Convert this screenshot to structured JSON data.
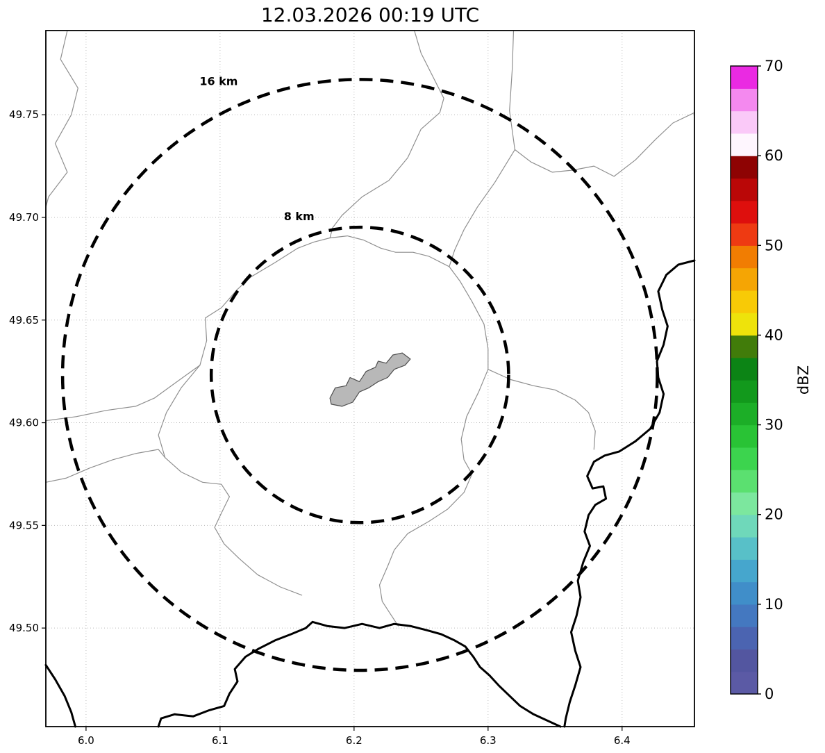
{
  "title": "12.03.2026 00:19 UTC",
  "map": {
    "extent": {
      "lon_min": 5.97,
      "lon_max": 6.454,
      "lat_min": 49.452,
      "lat_max": 49.791
    },
    "x_axis": {
      "tick_labels": [
        "6.0",
        "6.1",
        "6.2",
        "6.3",
        "6.4"
      ],
      "tick_values": [
        6.0,
        6.1,
        6.2,
        6.3,
        6.4
      ]
    },
    "y_axis": {
      "tick_labels": [
        "49.50",
        "49.55",
        "49.60",
        "49.65",
        "49.70",
        "49.75"
      ],
      "tick_values": [
        49.5,
        49.55,
        49.6,
        49.65,
        49.7,
        49.75
      ]
    },
    "radar_center": {
      "lon": 6.2044,
      "lat": 49.6233
    },
    "range_rings": [
      {
        "label": "16 km",
        "radius_km": 16,
        "label_pos": {
          "lon": 6.099,
          "lat": 49.7645
        }
      },
      {
        "label": "8 km",
        "radius_km": 8,
        "label_pos": {
          "lon": 6.159,
          "lat": 49.6987
        }
      }
    ],
    "airport_outline": [
      [
        6.182,
        49.612
      ],
      [
        6.186,
        49.617
      ],
      [
        6.194,
        49.618
      ],
      [
        6.197,
        49.622
      ],
      [
        6.204,
        49.62
      ],
      [
        6.209,
        49.625
      ],
      [
        6.216,
        49.627
      ],
      [
        6.218,
        49.63
      ],
      [
        6.224,
        49.629
      ],
      [
        6.229,
        49.633
      ],
      [
        6.236,
        49.634
      ],
      [
        6.242,
        49.631
      ],
      [
        6.238,
        49.628
      ],
      [
        6.23,
        49.626
      ],
      [
        6.225,
        49.622
      ],
      [
        6.218,
        49.62
      ],
      [
        6.211,
        49.617
      ],
      [
        6.204,
        49.615
      ],
      [
        6.199,
        49.61
      ],
      [
        6.191,
        49.608
      ],
      [
        6.183,
        49.609
      ]
    ],
    "country_borders": [
      [
        [
          6.454,
          49.679
        ],
        [
          6.442,
          49.677
        ],
        [
          6.433,
          49.672
        ],
        [
          6.427,
          49.664
        ],
        [
          6.43,
          49.655
        ],
        [
          6.434,
          49.647
        ],
        [
          6.431,
          49.638
        ],
        [
          6.426,
          49.63
        ],
        [
          6.427,
          49.622
        ],
        [
          6.431,
          49.614
        ],
        [
          6.428,
          49.605
        ],
        [
          6.421,
          49.597
        ],
        [
          6.41,
          49.591
        ],
        [
          6.398,
          49.586
        ],
        [
          6.387,
          49.584
        ],
        [
          6.379,
          49.581
        ],
        [
          6.374,
          49.574
        ],
        [
          6.378,
          49.568
        ],
        [
          6.386,
          49.569
        ],
        [
          6.388,
          49.563
        ],
        [
          6.38,
          49.56
        ],
        [
          6.375,
          49.555
        ],
        [
          6.372,
          49.547
        ],
        [
          6.376,
          49.54
        ],
        [
          6.371,
          49.532
        ],
        [
          6.367,
          49.523
        ],
        [
          6.369,
          49.515
        ],
        [
          6.366,
          49.506
        ],
        [
          6.362,
          49.498
        ],
        [
          6.365,
          49.489
        ],
        [
          6.369,
          49.481
        ],
        [
          6.365,
          49.472
        ],
        [
          6.361,
          49.464
        ],
        [
          6.358,
          49.456
        ],
        [
          6.357,
          49.452
        ]
      ],
      [
        [
          6.054,
          49.452
        ],
        [
          6.056,
          49.456
        ],
        [
          6.066,
          49.458
        ],
        [
          6.08,
          49.457
        ],
        [
          6.092,
          49.46
        ],
        [
          6.103,
          49.462
        ],
        [
          6.107,
          49.468
        ],
        [
          6.113,
          49.474
        ],
        [
          6.111,
          49.48
        ],
        [
          6.119,
          49.486
        ],
        [
          6.129,
          49.49
        ],
        [
          6.141,
          49.494
        ],
        [
          6.153,
          49.497
        ],
        [
          6.164,
          49.5
        ],
        [
          6.169,
          49.503
        ],
        [
          6.18,
          49.501
        ],
        [
          6.193,
          49.5
        ],
        [
          6.206,
          49.502
        ],
        [
          6.219,
          49.5
        ],
        [
          6.23,
          49.502
        ],
        [
          6.242,
          49.501
        ],
        [
          6.254,
          49.499
        ],
        [
          6.265,
          49.497
        ],
        [
          6.275,
          49.494
        ],
        [
          6.283,
          49.491
        ],
        [
          6.289,
          49.486
        ],
        [
          6.294,
          49.481
        ],
        [
          6.301,
          49.477
        ],
        [
          6.308,
          49.472
        ],
        [
          6.316,
          49.467
        ],
        [
          6.324,
          49.462
        ],
        [
          6.334,
          49.458
        ],
        [
          6.344,
          49.455
        ],
        [
          6.354,
          49.452
        ]
      ],
      [
        [
          5.97,
          49.482
        ],
        [
          5.977,
          49.475
        ],
        [
          5.984,
          49.467
        ],
        [
          5.989,
          49.459
        ],
        [
          5.992,
          49.452
        ]
      ]
    ],
    "admin_boundaries": [
      [
        [
          5.986,
          49.791
        ],
        [
          5.981,
          49.777
        ],
        [
          5.994,
          49.763
        ],
        [
          5.989,
          49.75
        ],
        [
          5.977,
          49.736
        ],
        [
          5.986,
          49.722
        ],
        [
          5.972,
          49.71
        ],
        [
          5.97,
          49.705
        ]
      ],
      [
        [
          6.245,
          49.791
        ],
        [
          6.25,
          49.78
        ],
        [
          6.267,
          49.758
        ],
        [
          6.264,
          49.751
        ],
        [
          6.25,
          49.743
        ],
        [
          6.24,
          49.729
        ],
        [
          6.226,
          49.718
        ],
        [
          6.206,
          49.71
        ],
        [
          6.191,
          49.701
        ],
        [
          6.184,
          49.695
        ],
        [
          6.182,
          49.69
        ]
      ],
      [
        [
          5.97,
          49.601
        ],
        [
          5.993,
          49.603
        ],
        [
          6.015,
          49.606
        ],
        [
          6.037,
          49.608
        ],
        [
          6.051,
          49.612
        ],
        [
          6.07,
          49.621
        ],
        [
          6.085,
          49.628
        ],
        [
          6.09,
          49.64
        ],
        [
          6.089,
          49.651
        ],
        [
          6.101,
          49.656
        ],
        [
          6.113,
          49.665
        ],
        [
          6.123,
          49.671
        ],
        [
          6.141,
          49.678
        ],
        [
          6.158,
          49.685
        ],
        [
          6.17,
          49.688
        ],
        [
          6.182,
          49.69
        ],
        [
          6.195,
          49.691
        ],
        [
          6.207,
          49.689
        ],
        [
          6.22,
          49.685
        ],
        [
          6.231,
          49.683
        ],
        [
          6.244,
          49.683
        ],
        [
          6.256,
          49.681
        ],
        [
          6.271,
          49.676
        ],
        [
          6.279,
          49.669
        ],
        [
          6.288,
          49.659
        ],
        [
          6.297,
          49.648
        ],
        [
          6.3,
          49.636
        ],
        [
          6.3,
          49.626
        ],
        [
          6.293,
          49.615
        ],
        [
          6.284,
          49.603
        ],
        [
          6.28,
          49.592
        ],
        [
          6.282,
          49.582
        ],
        [
          6.288,
          49.575
        ],
        [
          6.282,
          49.566
        ],
        [
          6.27,
          49.558
        ],
        [
          6.256,
          49.552
        ],
        [
          6.24,
          49.546
        ],
        [
          6.23,
          49.538
        ],
        [
          6.225,
          49.53
        ],
        [
          6.219,
          49.521
        ],
        [
          6.221,
          49.513
        ],
        [
          6.227,
          49.507
        ],
        [
          6.233,
          49.501
        ]
      ],
      [
        [
          6.085,
          49.628
        ],
        [
          6.071,
          49.617
        ],
        [
          6.06,
          49.605
        ],
        [
          6.054,
          49.594
        ],
        [
          6.059,
          49.583
        ],
        [
          6.071,
          49.576
        ],
        [
          6.087,
          49.571
        ],
        [
          6.101,
          49.57
        ],
        [
          6.107,
          49.564
        ],
        [
          6.101,
          49.556
        ],
        [
          6.096,
          49.549
        ],
        [
          6.103,
          49.541
        ],
        [
          6.114,
          49.534
        ],
        [
          6.128,
          49.526
        ],
        [
          6.145,
          49.52
        ],
        [
          6.161,
          49.516
        ]
      ],
      [
        [
          5.97,
          49.571
        ],
        [
          5.985,
          49.573
        ],
        [
          6.003,
          49.578
        ],
        [
          6.02,
          49.582
        ],
        [
          6.037,
          49.585
        ],
        [
          6.054,
          49.587
        ],
        [
          6.059,
          49.583
        ]
      ],
      [
        [
          6.319,
          49.791
        ],
        [
          6.318,
          49.772
        ],
        [
          6.316,
          49.752
        ],
        [
          6.32,
          49.733
        ],
        [
          6.332,
          49.727
        ],
        [
          6.348,
          49.722
        ],
        [
          6.363,
          49.723
        ],
        [
          6.379,
          49.725
        ],
        [
          6.394,
          49.72
        ],
        [
          6.41,
          49.728
        ],
        [
          6.425,
          49.738
        ],
        [
          6.438,
          49.746
        ],
        [
          6.454,
          49.751
        ]
      ],
      [
        [
          6.32,
          49.733
        ],
        [
          6.305,
          49.717
        ],
        [
          6.292,
          49.705
        ],
        [
          6.282,
          49.694
        ],
        [
          6.275,
          49.684
        ],
        [
          6.271,
          49.676
        ]
      ],
      [
        [
          6.3,
          49.626
        ],
        [
          6.317,
          49.621
        ],
        [
          6.334,
          49.618
        ],
        [
          6.35,
          49.616
        ],
        [
          6.365,
          49.611
        ],
        [
          6.375,
          49.605
        ],
        [
          6.38,
          49.596
        ],
        [
          6.379,
          49.587
        ]
      ]
    ],
    "style": {
      "ring_color": "#000000",
      "border_color": "#000000",
      "boundary_color": "#8f8f8f",
      "airport_fill": "#b8b8b8",
      "airport_stroke": "#4d4d4d",
      "grid_color": "#bbbbbb"
    }
  },
  "colorbar": {
    "label": "dBZ",
    "min": 0,
    "max": 70,
    "tick_labels": [
      "0",
      "10",
      "20",
      "30",
      "40",
      "50",
      "60",
      "70"
    ],
    "tick_values": [
      0,
      10,
      20,
      30,
      40,
      50,
      60,
      70
    ],
    "segment_dbz": 2.5,
    "segment_colors_bottom_to_top": [
      "#5b5aa5",
      "#5356a0",
      "#4b64b1",
      "#4478c0",
      "#408ec9",
      "#46a6cd",
      "#58c0c8",
      "#6fd8ba",
      "#7ce79e",
      "#5be070",
      "#3cd44e",
      "#29c335",
      "#1cae27",
      "#12991c",
      "#0c8415",
      "#417c0a",
      "#eee30b",
      "#f8ca06",
      "#f5a504",
      "#f17d02",
      "#ee3a12",
      "#de0f0d",
      "#ba0707",
      "#8e0303",
      "#fef6fe",
      "#fac9f8",
      "#f489ef",
      "#ea2ae2"
    ]
  }
}
